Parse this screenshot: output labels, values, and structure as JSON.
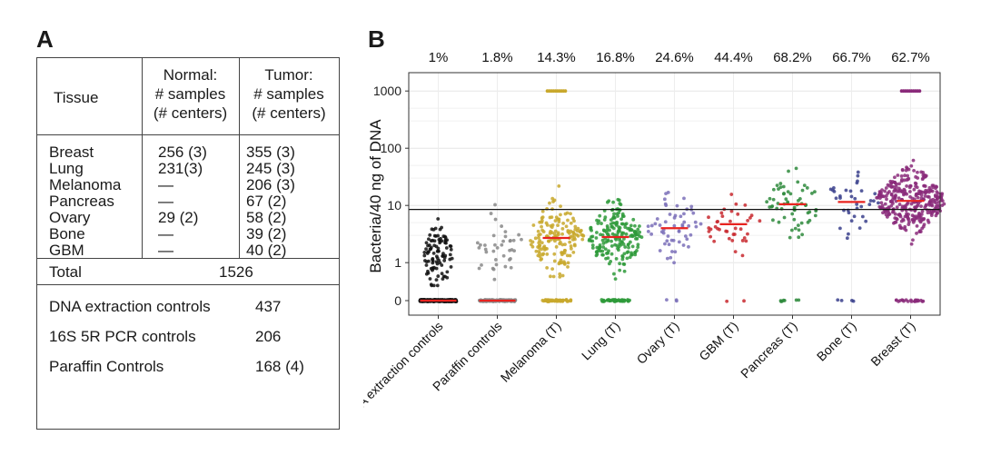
{
  "panel_a": {
    "label": "A",
    "header": {
      "tissue": "Tissue",
      "normal": [
        "Normal:",
        "# samples",
        "(# centers)"
      ],
      "tumor": [
        "Tumor:",
        "# samples",
        "(# centers)"
      ]
    },
    "rows": [
      {
        "tissue": "Breast",
        "normal": "256 (3)",
        "tumor": "355 (3)"
      },
      {
        "tissue": "Lung",
        "normal": "231(3)",
        "tumor": "245 (3)"
      },
      {
        "tissue": "Melanoma",
        "normal": "—",
        "tumor": "206 (3)"
      },
      {
        "tissue": "Pancreas",
        "normal": "—",
        "tumor": "67 (2)"
      },
      {
        "tissue": "Ovary",
        "normal": "29 (2)",
        "tumor": "58 (2)"
      },
      {
        "tissue": "Bone",
        "normal": "—",
        "tumor": "39 (2)"
      },
      {
        "tissue": "GBM",
        "normal": "—",
        "tumor": "40 (2)"
      }
    ],
    "total": {
      "label": "Total",
      "value": "1526"
    },
    "controls": [
      {
        "label": "DNA extraction controls",
        "value": "437"
      },
      {
        "label": "16S 5R PCR controls",
        "value": "206"
      },
      {
        "label": "Paraffin Controls",
        "value": "168 (4)"
      }
    ]
  },
  "panel_b": {
    "label": "B"
  },
  "chart_data": {
    "type": "scatter",
    "subtype": "beeswarm",
    "ylabel": "Bacteria/40 ng of DNA",
    "xlabel": "",
    "yscale": "log",
    "ylim": [
      0,
      1000
    ],
    "yticks": [
      {
        "value": 0,
        "label": "0"
      },
      {
        "value": 1,
        "label": "1"
      },
      {
        "value": 10,
        "label": "10"
      },
      {
        "value": 100,
        "label": "100"
      },
      {
        "value": 1000,
        "label": "1000"
      }
    ],
    "threshold": 8.5,
    "grid": true,
    "categories": [
      "DNA extraction controls",
      "Paraffin controls",
      "Melanoma (T)",
      "Lung (T)",
      "Ovary (T)",
      "GBM (T)",
      "Pancreas (T)",
      "Bone (T)",
      "Breast (T)"
    ],
    "percent_above_threshold": [
      "1%",
      "1.8%",
      "14.3%",
      "16.8%",
      "24.6%",
      "44.4%",
      "68.2%",
      "66.7%",
      "62.7%"
    ],
    "medians": [
      0,
      0,
      2.7,
      2.8,
      4.0,
      4.7,
      10.5,
      11.5,
      12
    ],
    "colors": [
      "#111111",
      "#888888",
      "#c8a82c",
      "#2e9a3a",
      "#7a6fb8",
      "#c8282e",
      "#2e8a3c",
      "#3a3f8c",
      "#8a2a7a"
    ],
    "median_color": "#e8231f",
    "point_counts": [
      437,
      168,
      206,
      245,
      58,
      40,
      67,
      39,
      355
    ]
  }
}
